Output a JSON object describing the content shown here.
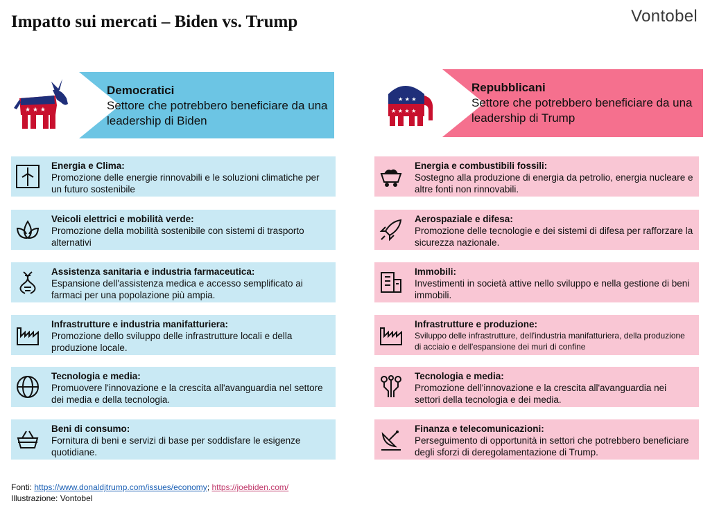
{
  "header": {
    "title": "Impatto sui mercati –  Biden vs. Trump",
    "brand": "Vontobel"
  },
  "democrats": {
    "banner_title": "Democratici",
    "banner_subtitle": "Settore che potrebbero beneficiare da una leadership di Biden",
    "emblem_icon": "donkey-icon",
    "items": [
      {
        "icon": "wind-turbine-icon",
        "title": "Energia e Clima:",
        "desc": "Promozione delle energie rinnovabili e le soluzioni climatiche per un futuro sostenibile"
      },
      {
        "icon": "leaf-icon",
        "title": "Veicoli elettrici e mobilità verde:",
        "desc": "Promozione della mobilità sostenibile con sistemi di trasporto alternativi"
      },
      {
        "icon": "dna-icon",
        "title": "Assistenza sanitaria e industria farmaceutica:",
        "desc": "Espansione dell'assistenza medica e accesso semplificato ai farmaci per una popolazione più ampia."
      },
      {
        "icon": "factory-icon",
        "title": "Infrastrutture e industria manifatturiera:",
        "desc": "Promozione dello sviluppo delle infrastrutture locali e della produzione locale."
      },
      {
        "icon": "globe-icon",
        "title": "Tecnologia e media:",
        "desc": "Promuovere l'innovazione e la crescita all'avanguardia nel settore dei media e della tecnologia."
      },
      {
        "icon": "basket-icon",
        "title": "Beni di consumo:",
        "desc": "Fornitura di beni e servizi di base per soddisfare le esigenze quotidiane."
      }
    ]
  },
  "republicans": {
    "banner_title": "Repubblicani",
    "banner_subtitle": "Settore che potrebbero beneficiare da una leadership di Trump",
    "emblem_icon": "elephant-icon",
    "items": [
      {
        "icon": "coal-cart-icon",
        "title": "Energia e combustibili fossili:",
        "desc": "Sostegno alla produzione di energia da petrolio, energia nucleare e altre fonti non rinnovabili."
      },
      {
        "icon": "rocket-icon",
        "title": "Aerospaziale e difesa:",
        "desc": "Promozione delle tecnologie e dei sistemi di difesa per rafforzare la sicurezza nazionale."
      },
      {
        "icon": "building-icon",
        "title": "Immobili:",
        "desc": "Investimenti in società attive nello sviluppo e nella gestione di beni immobili."
      },
      {
        "icon": "factory-icon",
        "title": "Infrastrutture e produzione:",
        "desc": "Sviluppo delle infrastrutture, dell'industria manifatturiera, della produzione di acciaio e dell'espansione dei muri di confine"
      },
      {
        "icon": "circuit-icon",
        "title": "Tecnologia e media:",
        "desc": "Promozione dell'innovazione e la crescita all'avanguardia nei settori della tecnologia e dei media."
      },
      {
        "icon": "satellite-dish-icon",
        "title": "Finanza e telecomunicazioni:",
        "desc": "Perseguimento di opportunità in settori che potrebbero beneficiare degli sforzi di deregolamentazione di Trump."
      }
    ]
  },
  "footer": {
    "sources_label": "Fonti: ",
    "link1": "https://www.donaldjtrump.com/issues/economy",
    "separator": "; ",
    "link2": "https://joebiden.com/",
    "illustration": "Illustrazione: Vontobel"
  },
  "colors": {
    "dem_banner": "#6cc5e4",
    "dem_item": "#c9e9f4",
    "rep_banner": "#f5708e",
    "rep_item": "#f9c6d4",
    "party_blue": "#1f2f7a",
    "party_red": "#c8102e"
  }
}
